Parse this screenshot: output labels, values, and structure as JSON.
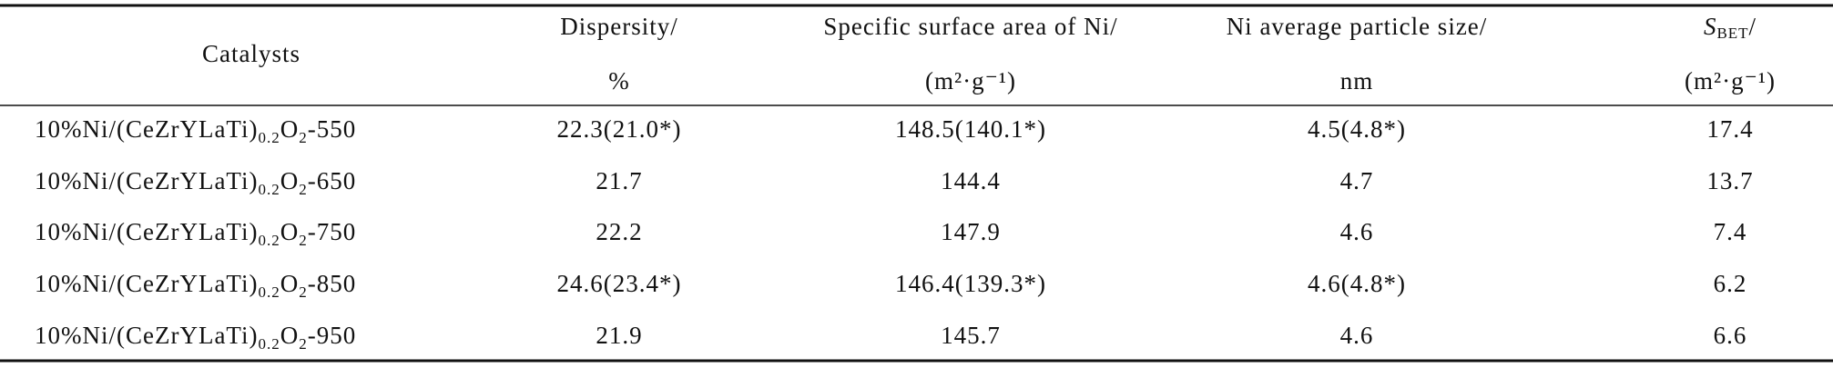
{
  "table": {
    "header": [
      {
        "line1": "Catalysts"
      },
      {
        "line1": "Dispersity/",
        "line2": "%"
      },
      {
        "line1": "Specific surface area of Ni/",
        "line2": "(m²·g⁻¹)"
      },
      {
        "line1": "Ni average particle size/",
        "line2": "nm"
      },
      {
        "symbol": "S",
        "symbol_sub": "BET",
        "slash": "/",
        "line2": "(m²·g⁻¹)"
      }
    ],
    "rows": [
      [
        {
          "prefix": "10%Ni/(CeZrYLaTi)",
          "sub1": "0.2",
          "mid": "O",
          "sub2": "2",
          "suffix": "-550"
        },
        "22.3(21.0*)",
        "148.5(140.1*)",
        "4.5(4.8*)",
        "17.4"
      ],
      [
        {
          "prefix": "10%Ni/(CeZrYLaTi)",
          "sub1": "0.2",
          "mid": "O",
          "sub2": "2",
          "suffix": "-650"
        },
        "21.7",
        "144.4",
        "4.7",
        "13.7"
      ],
      [
        {
          "prefix": "10%Ni/(CeZrYLaTi)",
          "sub1": "0.2",
          "mid": "O",
          "sub2": "2",
          "suffix": "-750"
        },
        "22.2",
        "147.9",
        "4.6",
        "7.4"
      ],
      [
        {
          "prefix": "10%Ni/(CeZrYLaTi)",
          "sub1": "0.2",
          "mid": "O",
          "sub2": "2",
          "suffix": "-850"
        },
        "24.6(23.4*)",
        "146.4(139.3*)",
        "4.6(4.8*)",
        "6.2"
      ],
      [
        {
          "prefix": "10%Ni/(CeZrYLaTi)",
          "sub1": "0.2",
          "mid": "O",
          "sub2": "2",
          "suffix": "-950"
        },
        "21.9",
        "145.7",
        "4.6",
        "6.6"
      ]
    ]
  }
}
